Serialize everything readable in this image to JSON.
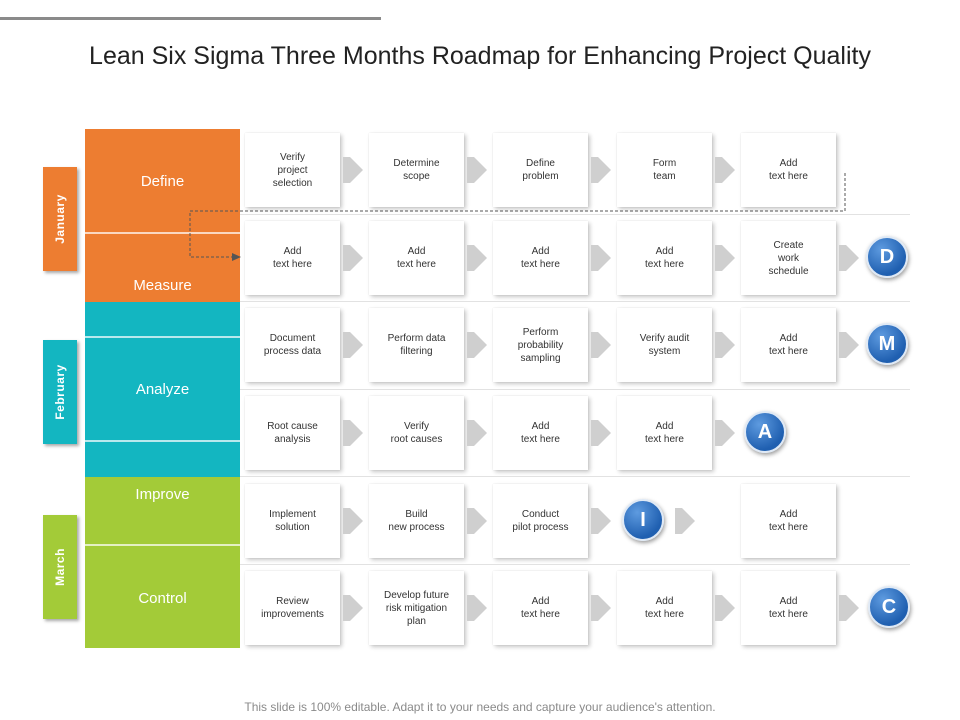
{
  "title": "Lean Six Sigma Three Months Roadmap for Enhancing Project Quality",
  "footer": "This slide is 100% editable. Adapt it to your needs and capture your audience's attention.",
  "months": [
    "January",
    "February",
    "March"
  ],
  "phases": [
    "Define",
    "Measure",
    "Analyze",
    "Improve",
    "Control"
  ],
  "colors": {
    "orange": "#ed7d31",
    "teal": "#13b6c1",
    "green": "#a3cb38",
    "circle": "#2467b8",
    "arrow": "#cfcfcf"
  },
  "rows": [
    {
      "steps": [
        "Verify\nproject\nselection",
        "Determine\nscope",
        "Define\nproblem",
        "Form\nteam",
        "Add\ntext here"
      ],
      "badge": ""
    },
    {
      "steps": [
        "Add\ntext here",
        "Add\ntext here",
        "Add\ntext here",
        "Add\ntext here",
        "Create\nwork\nschedule"
      ],
      "badge": "D"
    },
    {
      "steps": [
        "Document\nprocess data",
        "Perform data\nfiltering",
        "Perform\nprobability\nsampling",
        "Verify audit\nsystem",
        "Add\ntext here"
      ],
      "badge": "M"
    },
    {
      "steps": [
        "Root cause\nanalysis",
        "Verify\nroot causes",
        "Add\ntext here",
        "Add\ntext here"
      ],
      "badge": "A"
    },
    {
      "steps": [
        "Implement\nsolution",
        "Build\nnew process",
        "Conduct\npilot process",
        "Add\ntext here"
      ],
      "badge": "I"
    },
    {
      "steps": [
        "Review\nimprovements",
        "Develop future\nrisk mitigation\nplan",
        "Add\ntext here",
        "Add\ntext here",
        "Add\ntext here"
      ],
      "badge": "C"
    }
  ]
}
